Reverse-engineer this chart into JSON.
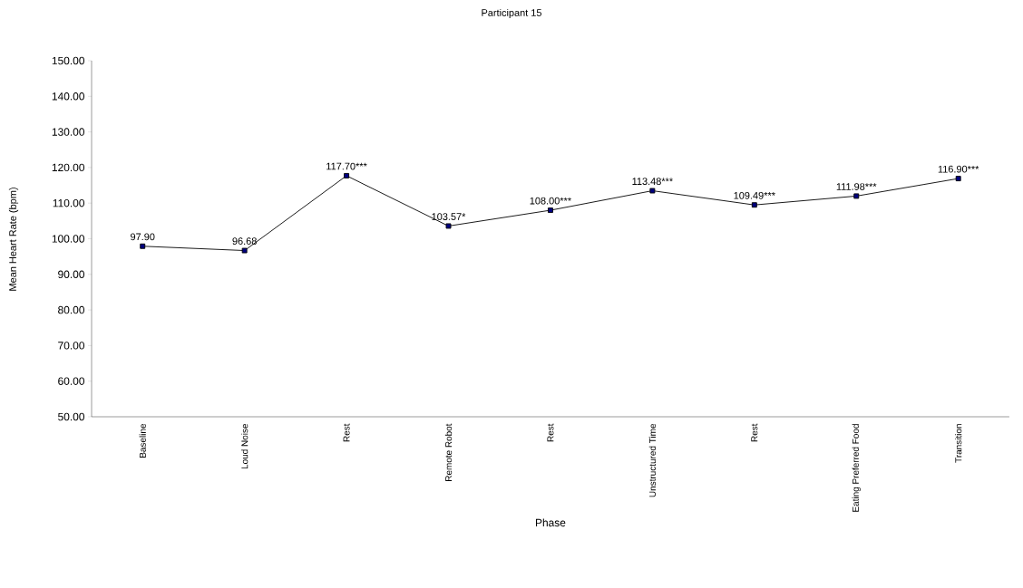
{
  "chart_data": {
    "type": "line",
    "title": "Participant 15",
    "xlabel": "Phase",
    "ylabel": "Mean Heart Rate (bpm)",
    "categories": [
      "Baseline",
      "Loud Noise",
      "Rest",
      "Remote Robot",
      "Rest",
      "Unstructured Time",
      "Rest",
      "Eating Preferred Food",
      "Transition"
    ],
    "values": [
      97.9,
      96.68,
      117.7,
      103.57,
      108.0,
      113.48,
      109.49,
      111.98,
      116.9
    ],
    "value_labels": [
      "97.90",
      "96.68",
      "117.70***",
      "103.57*",
      "108.00***",
      "113.48***",
      "109.49***",
      "111.98***",
      "116.90***"
    ],
    "color": "#000080",
    "marker": "square",
    "line_style": "solid",
    "ylim": [
      50,
      150
    ],
    "yticks": [
      {
        "value": 50,
        "label": "50.00"
      },
      {
        "value": 60,
        "label": "60.00"
      },
      {
        "value": 70,
        "label": "70.00"
      },
      {
        "value": 80,
        "label": "80.00"
      },
      {
        "value": 90,
        "label": "90.00"
      },
      {
        "value": 100,
        "label": "100.00"
      },
      {
        "value": 110,
        "label": "110.00"
      },
      {
        "value": 120,
        "label": "120.00"
      },
      {
        "value": 130,
        "label": "130.00"
      },
      {
        "value": 140,
        "label": "140.00"
      },
      {
        "value": 150,
        "label": "150.00"
      }
    ],
    "grid": false
  }
}
